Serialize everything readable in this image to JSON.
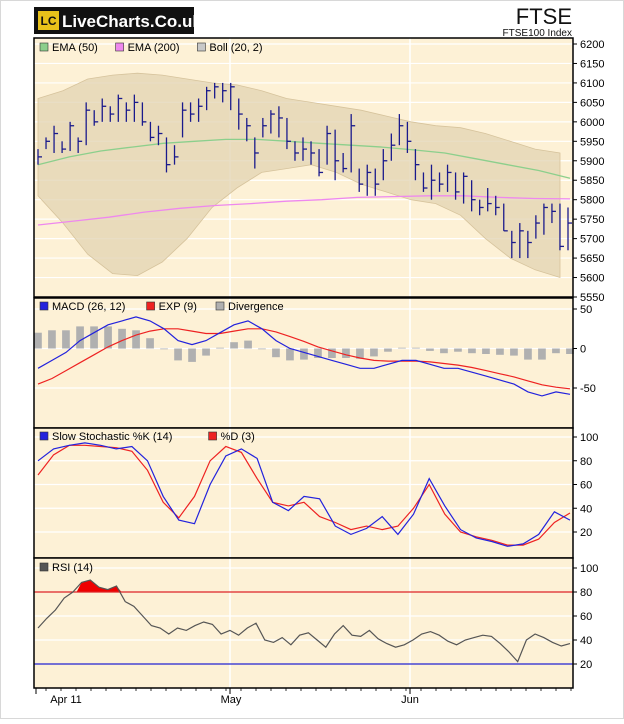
{
  "brand": {
    "badge": "LC",
    "name": "LiveCharts.Co.uk"
  },
  "header": {
    "symbol": "FTSE",
    "subtitle": "FTSE100 Index"
  },
  "colors": {
    "panel_bg": "#fdf1d6",
    "frame": "#000000",
    "ohlc": "#1a1a8c",
    "ema50": "#8ccf8c",
    "ema200": "#ee88ee",
    "boll": "#e2d3b2",
    "macd": "#2222dd",
    "signal": "#ee2222",
    "divergence": "#b0b0b0",
    "rsi": "#555555",
    "rsi_fill": "#ee0000",
    "level_red": "#dd2222",
    "level_blue": "#2222cc"
  },
  "chart_data": [
    {
      "type": "ohlc",
      "title": "FTSE",
      "subtitle": "FTSE100 Index",
      "ylim": [
        5550,
        6200
      ],
      "yticks": [
        "6200",
        "6150",
        "6100",
        "6050",
        "6000",
        "5950",
        "5900",
        "5850",
        "5800",
        "5750",
        "5700",
        "5650",
        "5600",
        "5550"
      ],
      "legend": [
        {
          "label": "EMA (50)",
          "color": "#8ccf8c"
        },
        {
          "label": "EMA (200)",
          "color": "#ee88ee"
        },
        {
          "label": "Boll (20, 2)",
          "color": "#c8c8c8"
        }
      ],
      "bars": [
        [
          5910,
          5890,
          5930
        ],
        [
          5950,
          5930,
          5960
        ],
        [
          5970,
          5920,
          5990
        ],
        [
          5930,
          5920,
          5950
        ],
        [
          5990,
          5925,
          6000
        ],
        [
          5950,
          5920,
          5960
        ],
        [
          6030,
          5940,
          6050
        ],
        [
          6000,
          5990,
          6030
        ],
        [
          6040,
          6000,
          6060
        ],
        [
          6020,
          6000,
          6040
        ],
        [
          6060,
          6000,
          6070
        ],
        [
          6030,
          6000,
          6050
        ],
        [
          6050,
          6000,
          6070
        ],
        [
          6000,
          5990,
          6050
        ],
        [
          5960,
          5950,
          6000
        ],
        [
          5970,
          5940,
          5990
        ],
        [
          5890,
          5870,
          5960
        ],
        [
          5910,
          5890,
          5940
        ],
        [
          6030,
          5960,
          6050
        ],
        [
          6020,
          6000,
          6050
        ],
        [
          6040,
          6000,
          6060
        ],
        [
          6080,
          6030,
          6090
        ],
        [
          6090,
          6060,
          6100
        ],
        [
          6080,
          6050,
          6100
        ],
        [
          6090,
          6030,
          6100
        ],
        [
          6020,
          5980,
          6060
        ],
        [
          5990,
          5950,
          6010
        ],
        [
          5920,
          5880,
          5960
        ],
        [
          5990,
          5960,
          6010
        ],
        [
          6020,
          5970,
          6030
        ],
        [
          6010,
          5960,
          6040
        ],
        [
          5950,
          5930,
          6010
        ],
        [
          5920,
          5900,
          5950
        ],
        [
          5930,
          5900,
          5960
        ],
        [
          5920,
          5890,
          5950
        ],
        [
          5870,
          5860,
          5930
        ],
        [
          5970,
          5890,
          5990
        ],
        [
          5900,
          5850,
          5980
        ],
        [
          5880,
          5870,
          5920
        ],
        [
          5990,
          5870,
          6020
        ],
        [
          5840,
          5820,
          5880
        ],
        [
          5870,
          5810,
          5890
        ],
        [
          5840,
          5810,
          5880
        ],
        [
          5900,
          5850,
          5930
        ],
        [
          5940,
          5900,
          5970
        ],
        [
          5990,
          5940,
          6020
        ],
        [
          5950,
          5920,
          6000
        ],
        [
          5890,
          5850,
          5930
        ],
        [
          5830,
          5820,
          5870
        ],
        [
          5850,
          5800,
          5890
        ],
        [
          5840,
          5820,
          5870
        ],
        [
          5870,
          5820,
          5890
        ],
        [
          5820,
          5800,
          5870
        ],
        [
          5860,
          5790,
          5870
        ],
        [
          5800,
          5770,
          5850
        ],
        [
          5780,
          5760,
          5800
        ],
        [
          5790,
          5770,
          5830
        ],
        [
          5780,
          5760,
          5810
        ],
        [
          5720,
          5720,
          5790
        ],
        [
          5690,
          5650,
          5720
        ],
        [
          5720,
          5650,
          5740
        ],
        [
          5690,
          5650,
          5720
        ],
        [
          5740,
          5700,
          5760
        ],
        [
          5780,
          5710,
          5790
        ],
        [
          5770,
          5740,
          5790
        ],
        [
          5680,
          5670,
          5790
        ],
        [
          5740,
          5670,
          5780
        ]
      ],
      "ema50": [
        5890,
        5910,
        5925,
        5935,
        5945,
        5950,
        5955,
        5955,
        5950,
        5945,
        5940,
        5935,
        5928,
        5920,
        5905,
        5890,
        5875,
        5855
      ],
      "ema200": [
        5735,
        5745,
        5755,
        5768,
        5778,
        5785,
        5790,
        5796,
        5800,
        5806,
        5808,
        5810,
        5810,
        5806,
        5803,
        5802
      ],
      "boll_upper": [
        6060,
        6080,
        6110,
        6120,
        6125,
        6120,
        6110,
        6100,
        6095,
        6080,
        6060,
        6050,
        6040,
        6030,
        6015,
        6000,
        5990,
        5985,
        5970,
        5950,
        5930,
        5920
      ],
      "boll_lower": [
        5810,
        5740,
        5660,
        5610,
        5605,
        5640,
        5700,
        5780,
        5830,
        5870,
        5880,
        5890,
        5870,
        5840,
        5820,
        5800,
        5790,
        5760,
        5700,
        5650,
        5620,
        5600
      ]
    },
    {
      "type": "line",
      "ylim": [
        -100,
        50
      ],
      "yticks": [
        "50",
        "0",
        "-50"
      ],
      "legend": [
        {
          "label": "MACD (26, 12)",
          "color": "#2222dd"
        },
        {
          "label": "EXP (9)",
          "color": "#ee2222"
        },
        {
          "label": "Divergence",
          "color": "#b0b0b0"
        }
      ],
      "series": [
        {
          "name": "MACD (26, 12)",
          "values": [
            -25,
            -15,
            -5,
            10,
            20,
            30,
            35,
            40,
            35,
            25,
            10,
            5,
            10,
            20,
            30,
            35,
            25,
            10,
            0,
            -5,
            -10,
            -15,
            -20,
            -25,
            -25,
            -20,
            -15,
            -15,
            -20,
            -25,
            -25,
            -30,
            -35,
            -40,
            -45,
            -55,
            -60,
            -55,
            -58
          ]
        },
        {
          "name": "EXP (9)",
          "values": [
            -45,
            -38,
            -28,
            -18,
            -8,
            2,
            10,
            17,
            22,
            25,
            25,
            22,
            19,
            19,
            22,
            25,
            25,
            21,
            15,
            9,
            2,
            -3,
            -8,
            -12,
            -15,
            -16,
            -16,
            -16,
            -17,
            -19,
            -21,
            -24,
            -28,
            -32,
            -36,
            -41,
            -46,
            -49,
            -51
          ]
        },
        {
          "name": "Divergence",
          "values": [
            20,
            23,
            23,
            28,
            28,
            28,
            25,
            23,
            13,
            0,
            -15,
            -17,
            -9,
            1,
            8,
            10,
            0,
            -11,
            -15,
            -14,
            -12,
            -12,
            -12,
            -13,
            -10,
            -4,
            1,
            1,
            -3,
            -6,
            -4,
            -6,
            -7,
            -8,
            -9,
            -14,
            -14,
            -6,
            -7
          ]
        }
      ]
    },
    {
      "type": "line",
      "ylim": [
        0,
        100
      ],
      "yticks": [
        "100",
        "80",
        "60",
        "40",
        "20"
      ],
      "legend": [
        {
          "label": "Slow Stochastic %K (14)",
          "color": "#2222dd"
        },
        {
          "label": "%D (3)",
          "color": "#ee2222"
        }
      ],
      "series": [
        {
          "name": "Slow Stochastic %K (14)",
          "values": [
            80,
            90,
            93,
            95,
            93,
            90,
            92,
            80,
            50,
            30,
            27,
            60,
            84,
            90,
            82,
            45,
            38,
            50,
            48,
            25,
            18,
            23,
            33,
            18,
            35,
            65,
            42,
            22,
            15,
            12,
            8,
            10,
            18,
            37,
            30
          ]
        },
        {
          "name": "%D (3)",
          "values": [
            68,
            85,
            93,
            93,
            92,
            91,
            88,
            72,
            45,
            32,
            50,
            80,
            92,
            87,
            65,
            45,
            42,
            45,
            33,
            28,
            22,
            25,
            22,
            25,
            40,
            60,
            35,
            20,
            16,
            13,
            9,
            9,
            14,
            28,
            36
          ]
        }
      ]
    },
    {
      "type": "line",
      "ylim": [
        0,
        100
      ],
      "yticks": [
        "100",
        "80",
        "60",
        "40",
        "20"
      ],
      "levels": [
        80,
        20
      ],
      "legend": [
        {
          "label": "RSI (14)",
          "color": "#555555"
        }
      ],
      "series": [
        {
          "name": "RSI (14)",
          "values": [
            50,
            58,
            65,
            75,
            80,
            88,
            90,
            84,
            82,
            85,
            72,
            68,
            60,
            52,
            50,
            45,
            50,
            48,
            52,
            55,
            53,
            45,
            48,
            44,
            50,
            54,
            40,
            38,
            42,
            36,
            44,
            46,
            40,
            34,
            45,
            52,
            44,
            43,
            48,
            41,
            37,
            34,
            36,
            40,
            45,
            47,
            44,
            39,
            36,
            40,
            42,
            44,
            43,
            37,
            30,
            22,
            40,
            45,
            42,
            38,
            35,
            37
          ]
        }
      ],
      "xticks": [
        "Apr 11",
        "May",
        "Jun"
      ]
    }
  ]
}
